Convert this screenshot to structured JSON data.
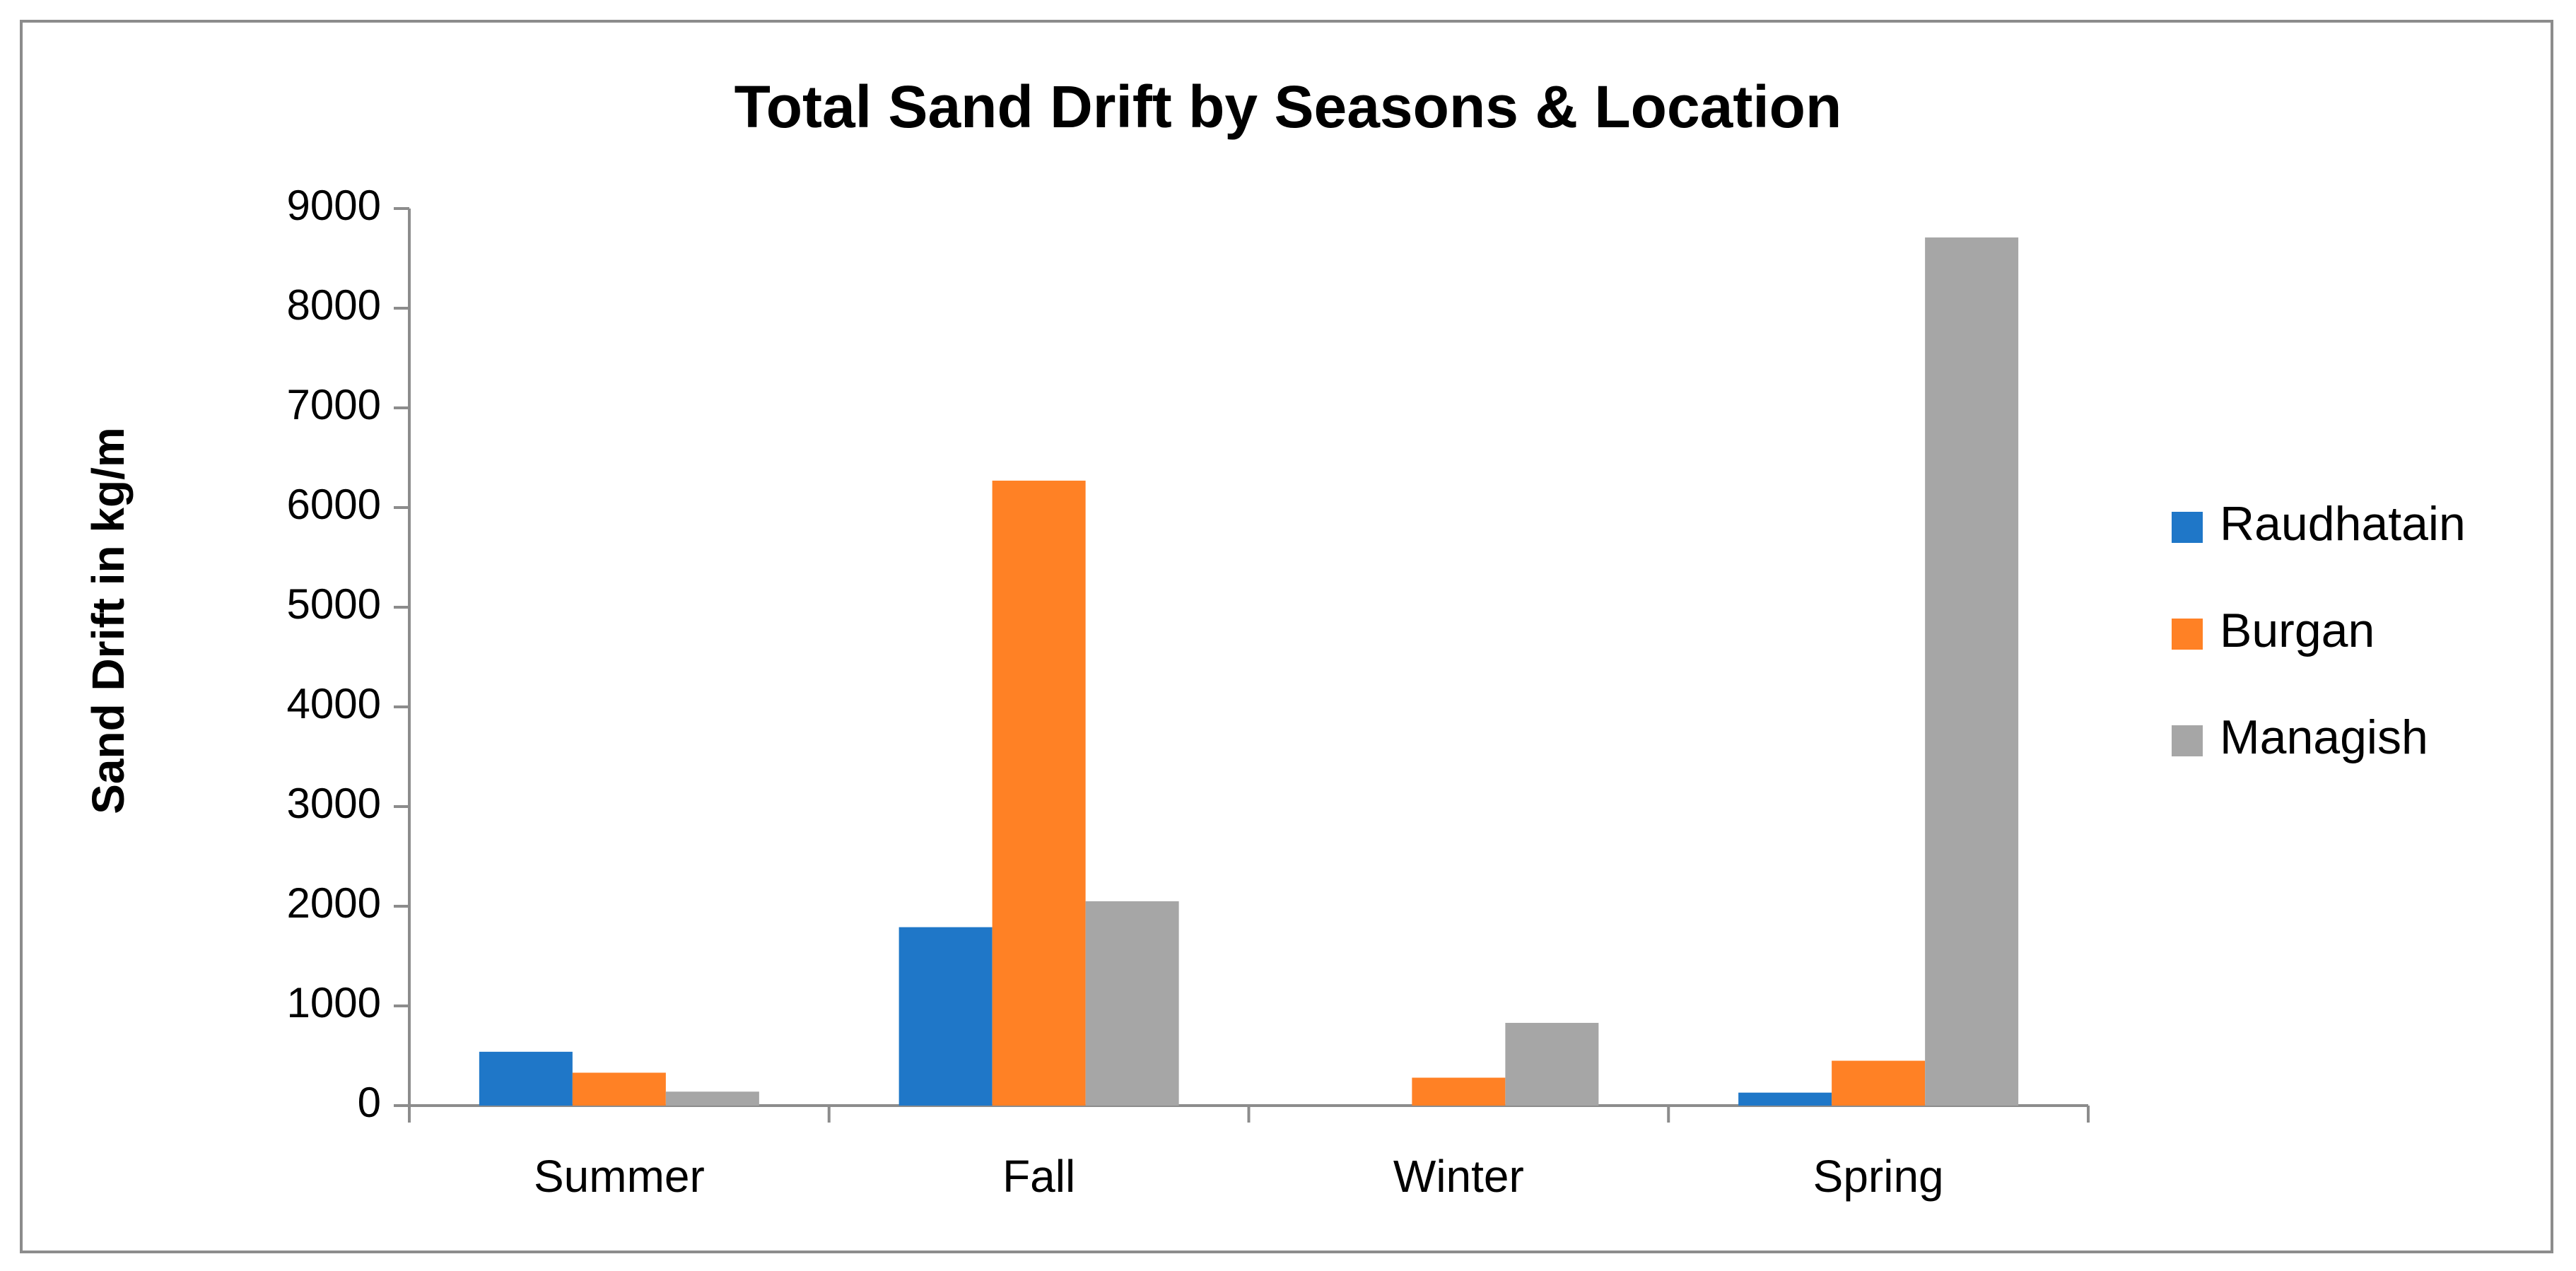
{
  "chart_data": {
    "type": "bar",
    "title": "Total Sand Drift by Seasons & Location",
    "y_label": "Sand Drift in kg/m",
    "categories": [
      "Summer",
      "Fall",
      "Winter",
      "Spring"
    ],
    "series": [
      {
        "name": "Raudhatain",
        "color": "#1f77c8",
        "values": [
          540,
          1790,
          0,
          130
        ]
      },
      {
        "name": "Burgan",
        "color": "#ff8125",
        "values": [
          330,
          6270,
          280,
          450
        ]
      },
      {
        "name": "Managish",
        "color": "#a6a6a6",
        "values": [
          140,
          2050,
          830,
          8710
        ]
      }
    ],
    "ylim": [
      0,
      9000
    ],
    "yticks": [
      0,
      1000,
      2000,
      3000,
      4000,
      5000,
      6000,
      7000,
      8000,
      9000
    ],
    "grid": false,
    "legend": "right"
  }
}
